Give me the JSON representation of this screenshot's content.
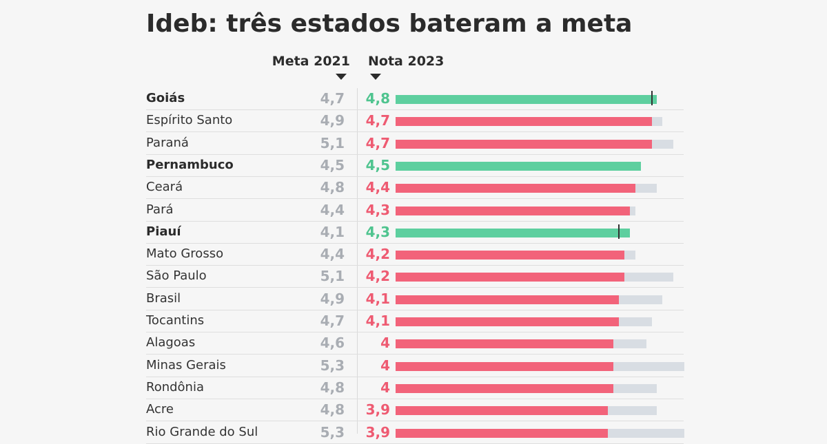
{
  "colors": {
    "met": "#5ecf9f",
    "missed": "#f2637a",
    "goal_bar": "#d8dde3",
    "goal_text": "#a9adb3",
    "met_text": "#4fc48f",
    "missed_text": "#ee5b72"
  },
  "chart_data": {
    "type": "bar",
    "title": "Ideb: três estados bateram a meta",
    "column_headers": {
      "meta": "Meta 2021",
      "nota": "Nota 2023"
    },
    "xlim": [
      0,
      5.3
    ],
    "categories": [
      "Goiás",
      "Espírito Santo",
      "Paraná",
      "Pernambuco",
      "Ceará",
      "Pará",
      "Piauí",
      "Mato Grosso",
      "São Paulo",
      "Brasil",
      "Tocantins",
      "Alagoas",
      "Minas Gerais",
      "Rondônia",
      "Acre",
      "Rio Grande do Sul"
    ],
    "series": [
      {
        "name": "Meta 2021",
        "values": [
          4.7,
          4.9,
          5.1,
          4.5,
          4.8,
          4.4,
          4.1,
          4.4,
          5.1,
          4.9,
          4.7,
          4.6,
          5.3,
          4.8,
          4.8,
          5.3
        ],
        "labels": [
          "4,7",
          "4,9",
          "5,1",
          "4,5",
          "4,8",
          "4,4",
          "4,1",
          "4,4",
          "5,1",
          "4,9",
          "4,7",
          "4,6",
          "5,3",
          "4,8",
          "4,8",
          "5,3"
        ]
      },
      {
        "name": "Nota 2023",
        "values": [
          4.8,
          4.7,
          4.7,
          4.5,
          4.4,
          4.3,
          4.3,
          4.2,
          4.2,
          4.1,
          4.1,
          4.0,
          4.0,
          4.0,
          3.9,
          3.9
        ],
        "labels": [
          "4,8",
          "4,7",
          "4,7",
          "4,5",
          "4,4",
          "4,3",
          "4,3",
          "4,2",
          "4,2",
          "4,1",
          "4,1",
          "4",
          "4",
          "4",
          "3,9",
          "3,9"
        ]
      }
    ],
    "met_goal": [
      true,
      false,
      false,
      true,
      false,
      false,
      true,
      false,
      false,
      false,
      false,
      false,
      false,
      false,
      false,
      false
    ]
  }
}
